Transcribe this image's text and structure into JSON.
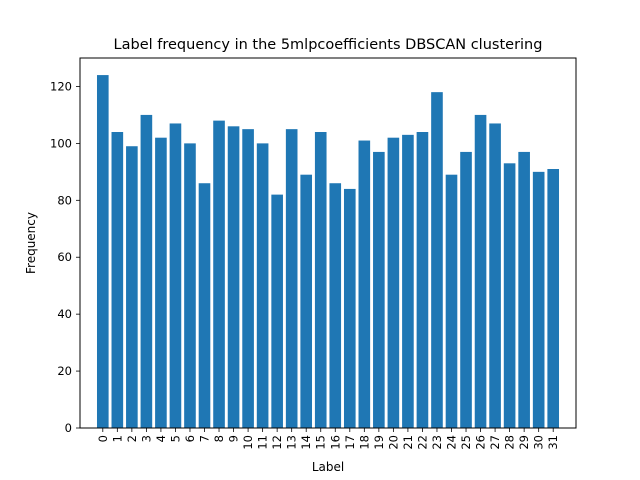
{
  "chart_data": {
    "type": "bar",
    "title": "Label frequency in the 5mlpcoefficients DBSCAN clustering",
    "xlabel": "Label",
    "ylabel": "Frequency",
    "categories": [
      "0",
      "1",
      "2",
      "3",
      "4",
      "5",
      "6",
      "7",
      "8",
      "9",
      "10",
      "11",
      "12",
      "13",
      "14",
      "15",
      "16",
      "17",
      "18",
      "19",
      "20",
      "21",
      "22",
      "23",
      "24",
      "25",
      "26",
      "27",
      "28",
      "29",
      "30",
      "31"
    ],
    "values": [
      124,
      104,
      99,
      110,
      102,
      107,
      100,
      86,
      108,
      106,
      105,
      100,
      82,
      105,
      89,
      104,
      86,
      84,
      101,
      97,
      102,
      103,
      104,
      118,
      89,
      97,
      110,
      107,
      93,
      97,
      90,
      91
    ],
    "ylim": [
      0,
      130
    ],
    "yticks": [
      0,
      20,
      40,
      60,
      80,
      100,
      120
    ],
    "grid": false,
    "bar_color": "#1f77b4"
  }
}
